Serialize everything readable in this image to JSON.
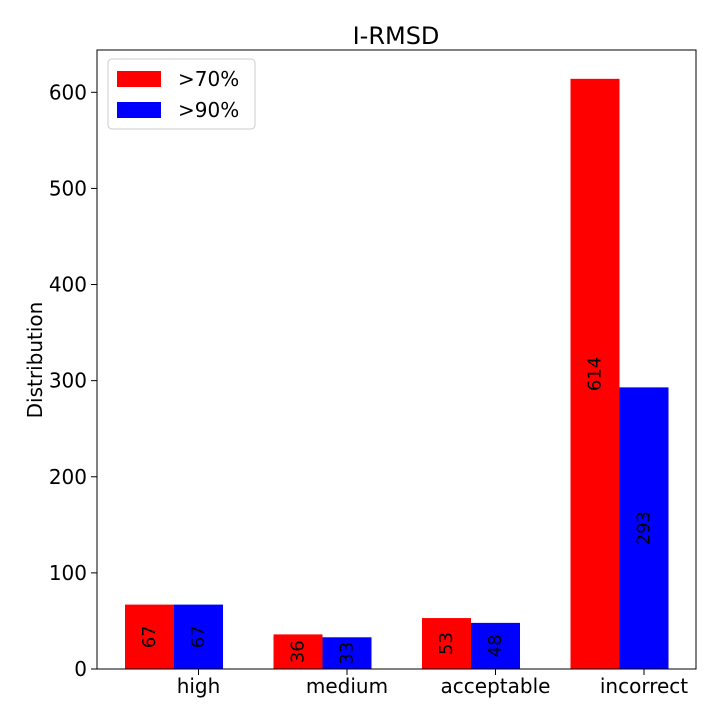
{
  "chart_data": {
    "type": "bar",
    "title": "I-RMSD",
    "xlabel": "",
    "ylabel": "Distribution",
    "categories": [
      "high",
      "medium",
      "acceptable",
      "incorrect"
    ],
    "series": [
      {
        "name": ">70%",
        "values": [
          67,
          36,
          53,
          614
        ],
        "color": "#ff0000"
      },
      {
        "name": ">90%",
        "values": [
          67,
          33,
          48,
          293
        ],
        "color": "#0000ff"
      }
    ],
    "ylim": [
      0,
      644
    ],
    "yticks": [
      0,
      100,
      200,
      300,
      400,
      500,
      600
    ],
    "grid": false,
    "legend_position": "top-left",
    "bar_labels": true
  }
}
